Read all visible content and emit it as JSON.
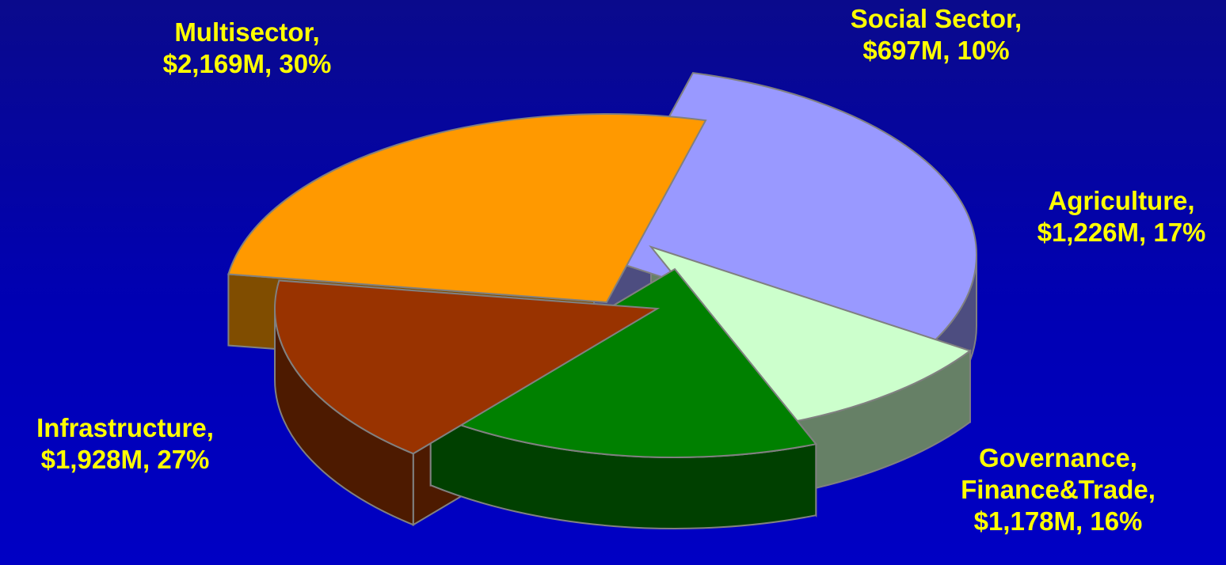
{
  "chart_data": {
    "type": "pie",
    "style": "3d-exploded",
    "title": "",
    "unit": "$M",
    "slices": [
      {
        "name": "Multisector",
        "value": 2169,
        "percent": 30,
        "label_lines": [
          "Multisector,",
          "$2,169M, 30%"
        ],
        "color_top": "#9999ff",
        "color_side": "#4d4d80"
      },
      {
        "name": "Social Sector",
        "value": 697,
        "percent": 10,
        "label_lines": [
          "Social Sector,",
          "$697M, 10%"
        ],
        "color_top": "#ccffcc",
        "color_side": "#668066"
      },
      {
        "name": "Agriculture",
        "value": 1226,
        "percent": 17,
        "label_lines": [
          "Agriculture,",
          "$1,226M, 17%"
        ],
        "color_top": "#008000",
        "color_side": "#004000"
      },
      {
        "name": "Governance, Finance&Trade",
        "value": 1178,
        "percent": 16,
        "label_lines": [
          "Governance,",
          "Finance&Trade,",
          "$1,178M, 16%"
        ],
        "color_top": "#993300",
        "color_side": "#4d1a00"
      },
      {
        "name": "Infrastructure",
        "value": 1928,
        "percent": 27,
        "label_lines": [
          "Infrastructure,",
          "$1,928M, 27%"
        ],
        "color_top": "#ff9900",
        "color_side": "#804d00"
      }
    ],
    "label_color": "#ffff00",
    "background": "#0000b4"
  }
}
